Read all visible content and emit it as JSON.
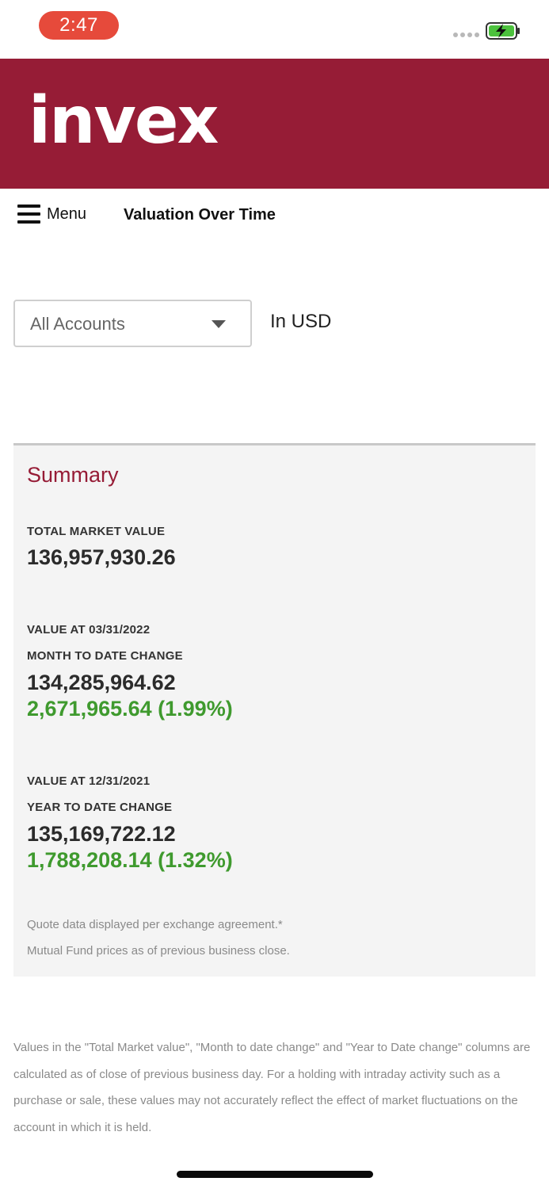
{
  "status_bar": {
    "time": "2:47"
  },
  "brand": {
    "logo_text": "invex",
    "color": "#961c36"
  },
  "nav": {
    "menu_label": "Menu",
    "page_title": "Valuation Over Time"
  },
  "filters": {
    "account_selected": "All Accounts",
    "currency": "In USD"
  },
  "summary": {
    "title": "Summary",
    "total_market_value_label": "TOTAL MARKET VALUE",
    "total_market_value": "136,957,930.26",
    "month": {
      "value_at_label": "VALUE AT 03/31/2022",
      "change_label": "MONTH TO DATE CHANGE",
      "value": "134,285,964.62",
      "change": "2,671,965.64 (1.99%)"
    },
    "year": {
      "value_at_label": "VALUE AT 12/31/2021",
      "change_label": "YEAR TO DATE CHANGE",
      "value": "135,169,722.12",
      "change": "1,788,208.14 (1.32%)"
    },
    "note_quote": "Quote data displayed per exchange agreement.*",
    "note_mutual_fund": "Mutual Fund prices as of previous business close."
  },
  "disclaimer": "Values in the \"Total Market value\", \"Month to date change\" and \"Year to Date change\" columns are calculated as of close of previous business day. For a holding with intraday activity such as a purchase or sale, these values may not accurately reflect the effect of market fluctuations on the account in which it is held.",
  "colors": {
    "accent": "#961c36",
    "positive": "#3f9a2e",
    "card_bg": "#f4f4f4"
  }
}
